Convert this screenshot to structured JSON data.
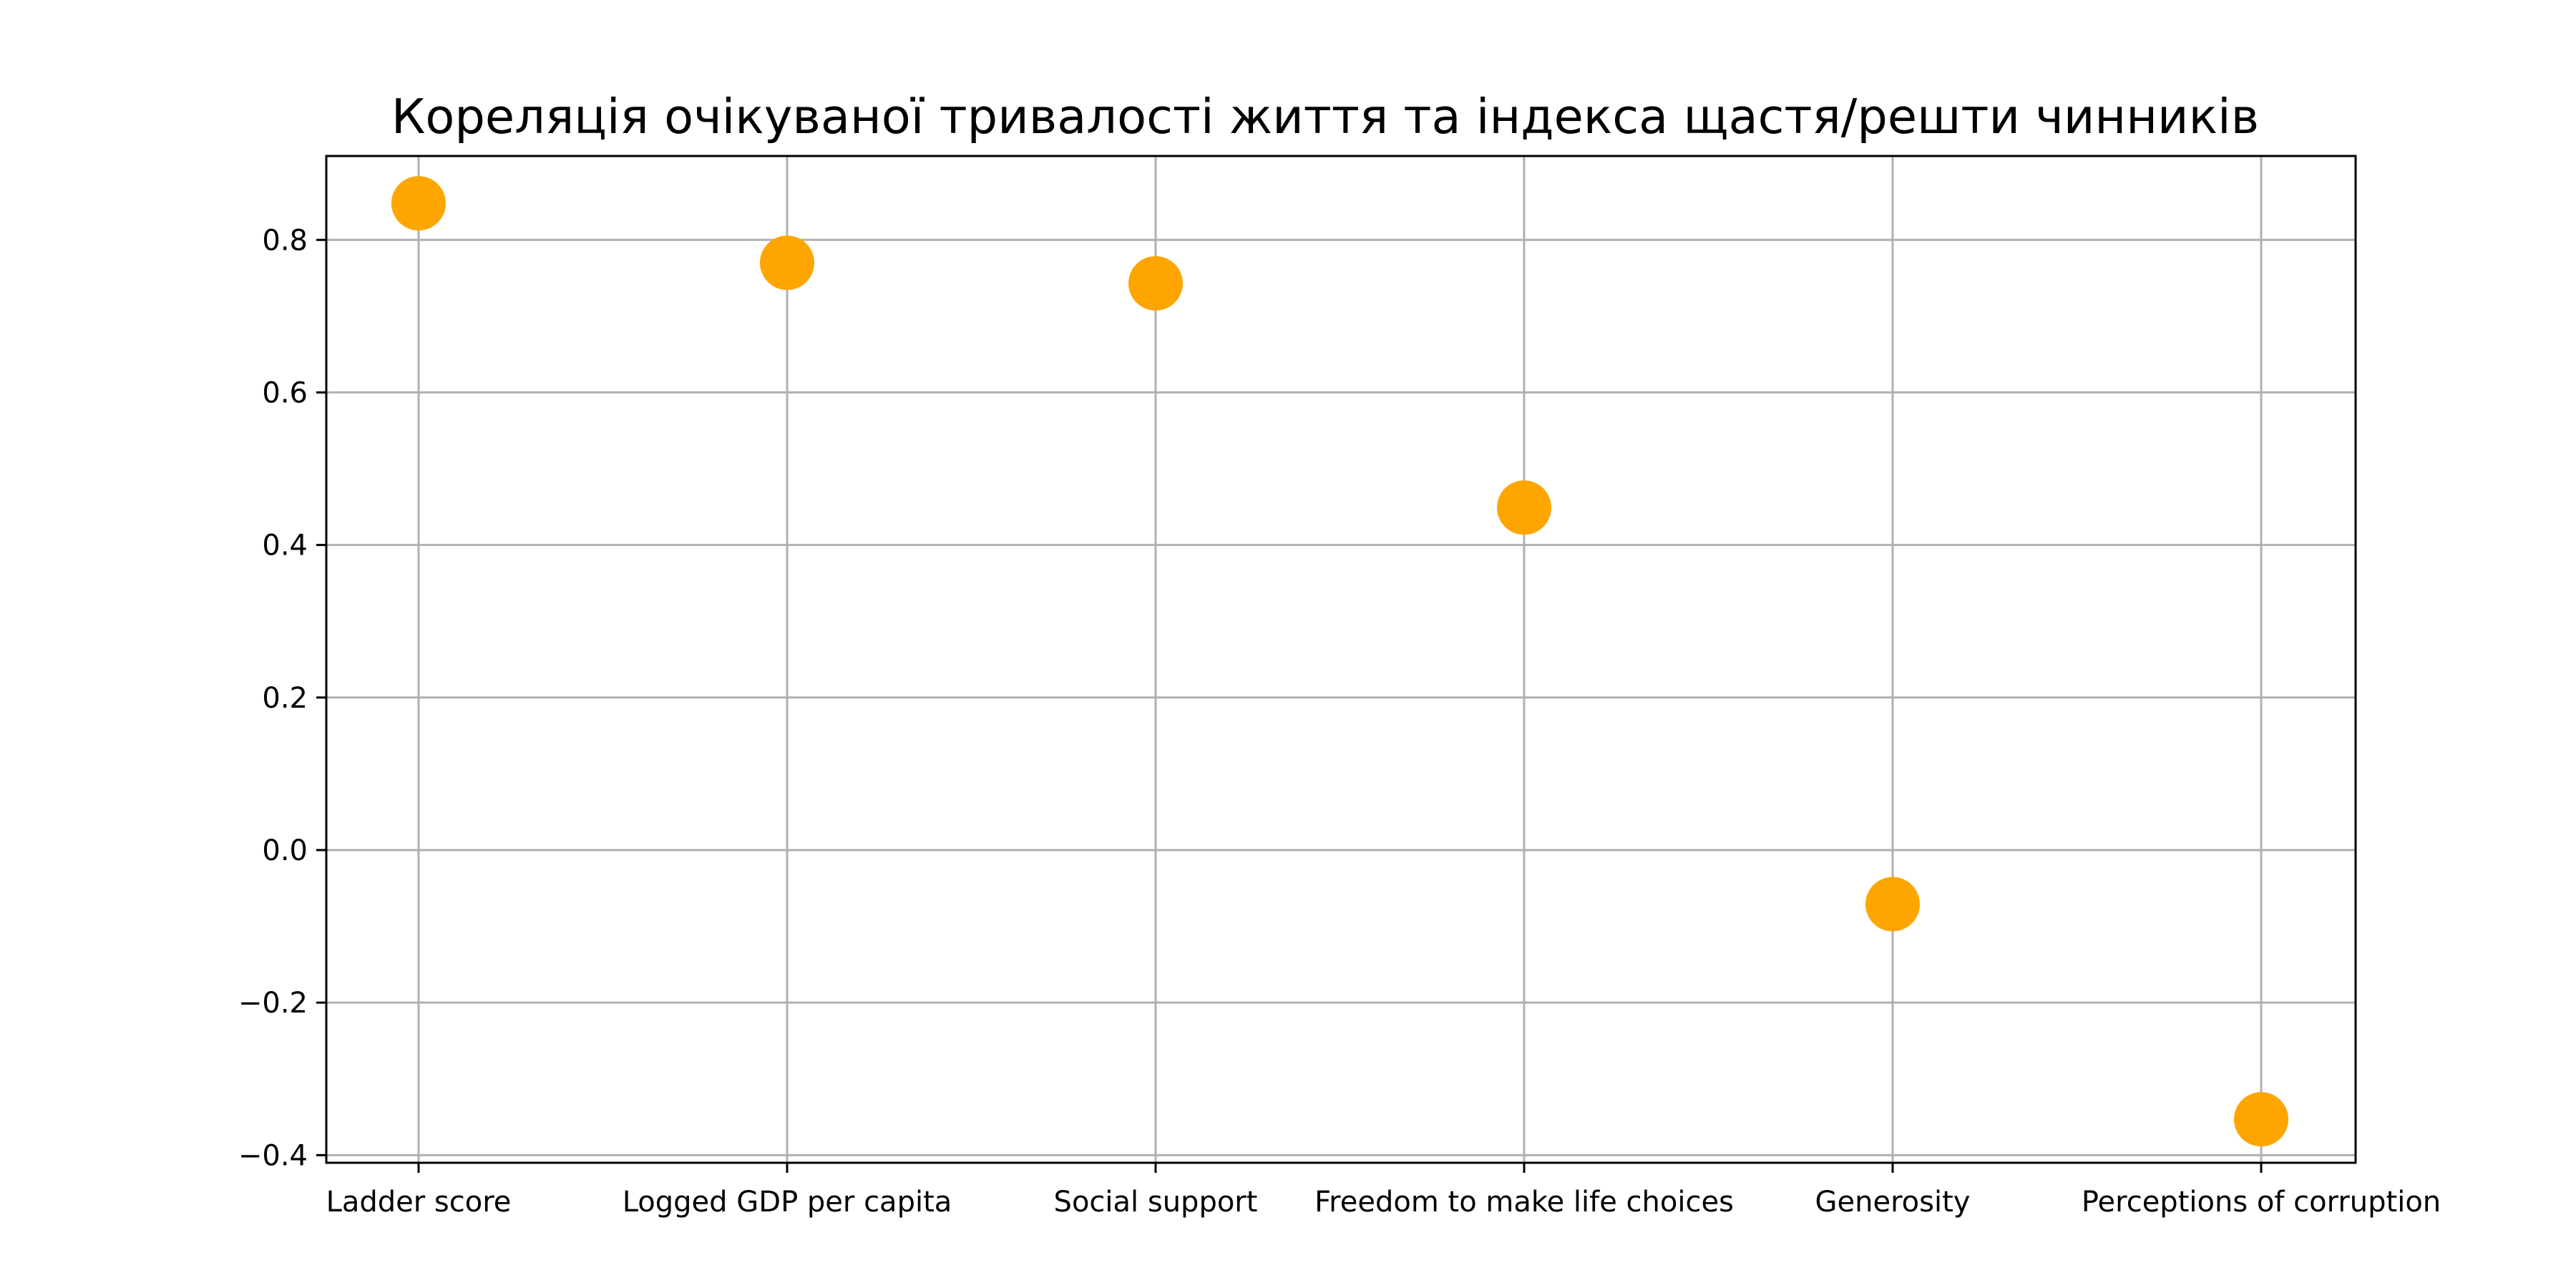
{
  "chart_data": {
    "type": "scatter",
    "title": "Кореляція очікуваної тривалості життя та індекса щастя/решти чинників",
    "xlabel": "",
    "ylabel": "",
    "categories": [
      "Ladder score",
      "Logged GDP per capita",
      "Social support",
      "Freedom to make life choices",
      "Generosity",
      "Perceptions of corruption"
    ],
    "values": [
      0.848,
      0.77,
      0.743,
      0.449,
      -0.071,
      -0.353
    ],
    "y_ticks": [
      -0.4,
      -0.2,
      0.0,
      0.2,
      0.4,
      0.6,
      0.8
    ],
    "y_tick_labels": [
      "−0.4",
      "−0.2",
      "0.0",
      "0.2",
      "0.4",
      "0.6",
      "0.8"
    ],
    "ylim": [
      -0.41,
      0.91
    ],
    "grid": true,
    "legend": "none",
    "marker_color": "#FFA500"
  }
}
